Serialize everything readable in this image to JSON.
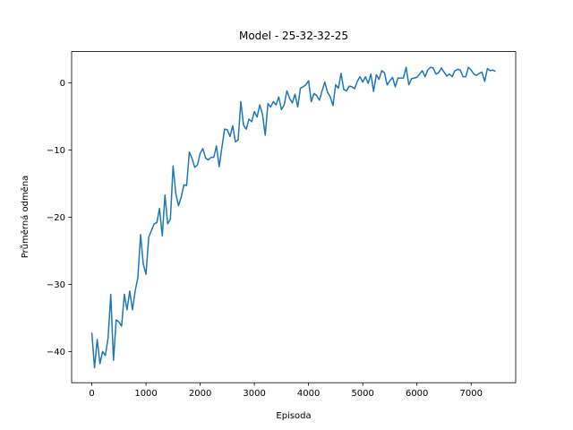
{
  "chart_data": {
    "type": "line",
    "title": "Model - 25-32-32-25",
    "x_label": "Episoda",
    "y_label": "Průměrná odměna",
    "x": [
      0,
      50,
      100,
      150,
      200,
      250,
      300,
      350,
      400,
      450,
      500,
      550,
      600,
      650,
      700,
      750,
      800,
      850,
      900,
      950,
      1000,
      1050,
      1100,
      1150,
      1200,
      1250,
      1300,
      1350,
      1400,
      1450,
      1500,
      1550,
      1600,
      1650,
      1700,
      1750,
      1800,
      1850,
      1900,
      1950,
      2000,
      2050,
      2100,
      2150,
      2200,
      2250,
      2300,
      2350,
      2400,
      2450,
      2500,
      2550,
      2600,
      2650,
      2700,
      2750,
      2800,
      2850,
      2900,
      2950,
      3000,
      3050,
      3100,
      3150,
      3200,
      3250,
      3300,
      3350,
      3400,
      3450,
      3500,
      3550,
      3600,
      3650,
      3700,
      3750,
      3800,
      3850,
      3900,
      3950,
      4000,
      4050,
      4100,
      4150,
      4200,
      4250,
      4300,
      4350,
      4400,
      4450,
      4500,
      4550,
      4600,
      4650,
      4700,
      4750,
      4800,
      4850,
      4900,
      4950,
      5000,
      5050,
      5100,
      5150,
      5200,
      5250,
      5300,
      5350,
      5400,
      5450,
      5500,
      5550,
      5600,
      5650,
      5700,
      5750,
      5800,
      5850,
      5900,
      5950,
      6000,
      6050,
      6100,
      6150,
      6200,
      6250,
      6300,
      6350,
      6400,
      6450,
      6500,
      6550,
      6600,
      6650,
      6700,
      6750,
      6800,
      6850,
      6900,
      6950,
      7000,
      7050,
      7100,
      7150,
      7200,
      7250,
      7300,
      7350,
      7400,
      7450
    ],
    "series": [
      {
        "color": "#1f77b4",
        "values": [
          -37.2,
          -42.4,
          -38.2,
          -41.8,
          -40,
          -40.6,
          -38,
          -31.5,
          -41.3,
          -35.3,
          -35.6,
          -36.2,
          -31.5,
          -33.8,
          -31,
          -33.8,
          -31,
          -29,
          -22.6,
          -27,
          -28.5,
          -23,
          -22,
          -21,
          -20.8,
          -18.7,
          -22.8,
          -16.7,
          -21,
          -20.3,
          -12.4,
          -16.5,
          -18.3,
          -17,
          -15.2,
          -15.3,
          -10.3,
          -11.3,
          -12.6,
          -12.2,
          -10.5,
          -9.8,
          -11.2,
          -11.5,
          -11.1,
          -11.1,
          -9.4,
          -12.5,
          -9.7,
          -6.9,
          -7,
          -8,
          -6.4,
          -8.8,
          -8.5,
          -2.8,
          -6.3,
          -6.9,
          -5.4,
          -5.8,
          -4.3,
          -5.1,
          -3.3,
          -4.7,
          -7.8,
          -3.1,
          -3.6,
          -2.8,
          -3.3,
          -2.1,
          -4,
          -3.3,
          -1.2,
          -2.3,
          -3,
          -1.7,
          -3.6,
          -0.8,
          -0.6,
          -0.3,
          0.3,
          -2.8,
          -1.6,
          -1.9,
          -2.6,
          -1.2,
          0.1,
          -1.4,
          -2.1,
          -3.4,
          -0.3,
          -0.8,
          1.4,
          -1,
          -1.2,
          -0.5,
          -0.6,
          -0.9,
          0.2,
          0.9,
          0.1,
          0.9,
          -0.1,
          1.3,
          -1.3,
          1.2,
          0.5,
          1.8,
          1.5,
          -0.3,
          0.3,
          0.8,
          -0.6,
          0.7,
          0.7,
          0.7,
          2.3,
          -0.3,
          0.6,
          0.7,
          0.8,
          1.3,
          1.8,
          0.9,
          1.9,
          2.3,
          2.2,
          1.3,
          1.5,
          2.2,
          1.6,
          1,
          1.3,
          0.9,
          1.8,
          2,
          1.9,
          0.9,
          0.9,
          2.3,
          1.9,
          1.3,
          1.1,
          1.4,
          1.6,
          0.2,
          2.1,
          1.8,
          1.9,
          1.7
        ]
      }
    ],
    "xlim": [
      -372.5,
      7822.5
    ],
    "ylim": [
      -44.64,
      4.64
    ],
    "xticks": [
      0,
      1000,
      2000,
      3000,
      4000,
      5000,
      6000,
      7000
    ],
    "yticks": [
      {
        "value": -40,
        "label": "−40"
      },
      {
        "value": -30,
        "label": "−30"
      },
      {
        "value": -20,
        "label": "−20"
      },
      {
        "value": -10,
        "label": "−10"
      },
      0
    ],
    "grid": false
  }
}
